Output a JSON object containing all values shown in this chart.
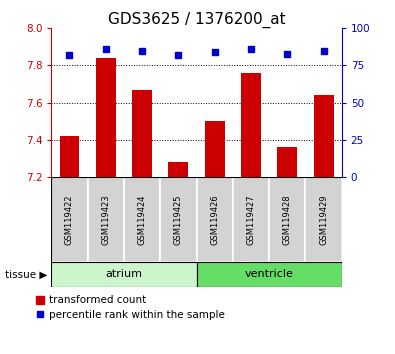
{
  "title": "GDS3625 / 1376200_at",
  "samples": [
    "GSM119422",
    "GSM119423",
    "GSM119424",
    "GSM119425",
    "GSM119426",
    "GSM119427",
    "GSM119428",
    "GSM119429"
  ],
  "bar_values": [
    7.42,
    7.84,
    7.67,
    7.28,
    7.5,
    7.76,
    7.36,
    7.64
  ],
  "percentile_values": [
    82,
    86,
    85,
    82,
    84,
    86,
    83,
    85
  ],
  "ymin": 7.2,
  "ymax": 8.0,
  "bar_bottom": 7.2,
  "yticks_left": [
    7.2,
    7.4,
    7.6,
    7.8,
    8.0
  ],
  "yticks_right": [
    0,
    25,
    50,
    75,
    100
  ],
  "yright_min": 0,
  "yright_max": 100,
  "bar_color": "#cc0000",
  "dot_color": "#0000cc",
  "tissue_groups": [
    {
      "label": "atrium",
      "start": 0,
      "end": 3,
      "color": "#ccf5cc"
    },
    {
      "label": "ventricle",
      "start": 4,
      "end": 7,
      "color": "#66dd66"
    }
  ],
  "legend_bar_label": "transformed count",
  "legend_dot_label": "percentile rank within the sample",
  "tick_box_color": "#d3d3d3",
  "left_tick_color": "#cc0000",
  "right_tick_color": "#0000cc",
  "title_fontsize": 11,
  "tick_fontsize": 7.5,
  "label_fontsize": 8
}
